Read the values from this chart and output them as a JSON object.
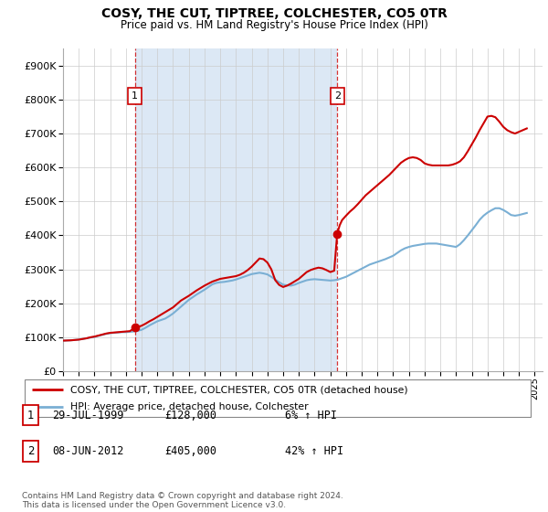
{
  "title": "COSY, THE CUT, TIPTREE, COLCHESTER, CO5 0TR",
  "subtitle": "Price paid vs. HM Land Registry's House Price Index (HPI)",
  "ytick_values": [
    0,
    100000,
    200000,
    300000,
    400000,
    500000,
    600000,
    700000,
    800000,
    900000
  ],
  "ylim": [
    0,
    950000
  ],
  "xlim_start": 1995.0,
  "xlim_end": 2025.5,
  "property_color": "#cc0000",
  "hpi_color": "#7aafd4",
  "shade_color": "#dce8f5",
  "dashed_color": "#cc0000",
  "marker1_date": 1999.57,
  "marker1_value": 128000,
  "marker1_label": "1",
  "marker2_date": 2012.44,
  "marker2_value": 405000,
  "marker2_label": "2",
  "legend_property": "COSY, THE CUT, TIPTREE, COLCHESTER, CO5 0TR (detached house)",
  "legend_hpi": "HPI: Average price, detached house, Colchester",
  "table_rows": [
    {
      "num": "1",
      "date": "29-JUL-1999",
      "price": "£128,000",
      "change": "6% ↑ HPI"
    },
    {
      "num": "2",
      "date": "08-JUN-2012",
      "price": "£405,000",
      "change": "42% ↑ HPI"
    }
  ],
  "footnote": "Contains HM Land Registry data © Crown copyright and database right 2024.\nThis data is licensed under the Open Government Licence v3.0.",
  "hpi_data_years": [
    1995.0,
    1995.25,
    1995.5,
    1995.75,
    1996.0,
    1996.25,
    1996.5,
    1996.75,
    1997.0,
    1997.25,
    1997.5,
    1997.75,
    1998.0,
    1998.25,
    1998.5,
    1998.75,
    1999.0,
    1999.25,
    1999.5,
    1999.75,
    2000.0,
    2000.25,
    2000.5,
    2000.75,
    2001.0,
    2001.25,
    2001.5,
    2001.75,
    2002.0,
    2002.25,
    2002.5,
    2002.75,
    2003.0,
    2003.25,
    2003.5,
    2003.75,
    2004.0,
    2004.25,
    2004.5,
    2004.75,
    2005.0,
    2005.25,
    2005.5,
    2005.75,
    2006.0,
    2006.25,
    2006.5,
    2006.75,
    2007.0,
    2007.25,
    2007.5,
    2007.75,
    2008.0,
    2008.25,
    2008.5,
    2008.75,
    2009.0,
    2009.25,
    2009.5,
    2009.75,
    2010.0,
    2010.25,
    2010.5,
    2010.75,
    2011.0,
    2011.25,
    2011.5,
    2011.75,
    2012.0,
    2012.25,
    2012.5,
    2012.75,
    2013.0,
    2013.25,
    2013.5,
    2013.75,
    2014.0,
    2014.25,
    2014.5,
    2014.75,
    2015.0,
    2015.25,
    2015.5,
    2015.75,
    2016.0,
    2016.25,
    2016.5,
    2016.75,
    2017.0,
    2017.25,
    2017.5,
    2017.75,
    2018.0,
    2018.25,
    2018.5,
    2018.75,
    2019.0,
    2019.25,
    2019.5,
    2019.75,
    2020.0,
    2020.25,
    2020.5,
    2020.75,
    2021.0,
    2021.25,
    2021.5,
    2021.75,
    2022.0,
    2022.25,
    2022.5,
    2022.75,
    2023.0,
    2023.25,
    2023.5,
    2023.75,
    2024.0,
    2024.25,
    2024.5
  ],
  "hpi_data_values": [
    90000,
    90500,
    91000,
    92000,
    93000,
    95000,
    97000,
    99000,
    101000,
    104000,
    107000,
    110000,
    112000,
    113000,
    114000,
    115000,
    115000,
    116000,
    117000,
    119000,
    122000,
    128000,
    135000,
    141000,
    147000,
    151000,
    155000,
    162000,
    170000,
    180000,
    190000,
    200000,
    210000,
    218000,
    226000,
    233000,
    240000,
    248000,
    256000,
    260000,
    262000,
    263000,
    265000,
    267000,
    270000,
    274000,
    278000,
    282000,
    286000,
    288000,
    290000,
    288000,
    285000,
    278000,
    270000,
    262000,
    255000,
    253000,
    252000,
    255000,
    260000,
    264000,
    268000,
    270000,
    271000,
    270000,
    269000,
    268000,
    267000,
    268000,
    270000,
    274000,
    278000,
    284000,
    290000,
    296000,
    302000,
    308000,
    314000,
    318000,
    322000,
    326000,
    330000,
    335000,
    340000,
    348000,
    356000,
    362000,
    366000,
    369000,
    371000,
    373000,
    375000,
    376000,
    376000,
    376000,
    374000,
    372000,
    370000,
    368000,
    366000,
    374000,
    386000,
    400000,
    415000,
    430000,
    446000,
    458000,
    467000,
    474000,
    480000,
    480000,
    475000,
    468000,
    460000,
    458000,
    460000,
    463000,
    466000
  ],
  "prop_data_years": [
    1995.0,
    1995.25,
    1995.5,
    1995.75,
    1996.0,
    1996.25,
    1996.5,
    1996.75,
    1997.0,
    1997.25,
    1997.5,
    1997.75,
    1998.0,
    1998.25,
    1998.5,
    1998.75,
    1999.0,
    1999.25,
    1999.57,
    1999.75,
    2000.0,
    2000.25,
    2000.5,
    2000.75,
    2001.0,
    2001.25,
    2001.5,
    2001.75,
    2002.0,
    2002.25,
    2002.5,
    2002.75,
    2003.0,
    2003.25,
    2003.5,
    2003.75,
    2004.0,
    2004.25,
    2004.5,
    2004.75,
    2005.0,
    2005.25,
    2005.5,
    2005.75,
    2006.0,
    2006.25,
    2006.5,
    2006.75,
    2007.0,
    2007.25,
    2007.5,
    2007.75,
    2008.0,
    2008.25,
    2008.5,
    2008.75,
    2009.0,
    2009.25,
    2009.5,
    2009.75,
    2010.0,
    2010.25,
    2010.5,
    2010.75,
    2011.0,
    2011.25,
    2011.5,
    2011.75,
    2012.0,
    2012.25,
    2012.44,
    2012.6,
    2012.75,
    2013.0,
    2013.25,
    2013.5,
    2013.75,
    2014.0,
    2014.25,
    2014.5,
    2014.75,
    2015.0,
    2015.25,
    2015.5,
    2015.75,
    2016.0,
    2016.25,
    2016.5,
    2016.75,
    2017.0,
    2017.25,
    2017.5,
    2017.75,
    2018.0,
    2018.25,
    2018.5,
    2018.75,
    2019.0,
    2019.25,
    2019.5,
    2019.75,
    2020.0,
    2020.25,
    2020.5,
    2020.75,
    2021.0,
    2021.25,
    2021.5,
    2021.75,
    2022.0,
    2022.25,
    2022.5,
    2022.75,
    2023.0,
    2023.25,
    2023.5,
    2023.75,
    2024.0,
    2024.25,
    2024.5
  ],
  "prop_data_values": [
    90000,
    90500,
    91000,
    92000,
    93000,
    95000,
    97000,
    100000,
    102000,
    105000,
    108000,
    111000,
    113000,
    114000,
    115000,
    116000,
    117000,
    118000,
    128000,
    130000,
    134000,
    140000,
    147000,
    153000,
    160000,
    167000,
    174000,
    181000,
    188000,
    198000,
    208000,
    215000,
    222000,
    230000,
    238000,
    245000,
    252000,
    258000,
    264000,
    268000,
    272000,
    274000,
    276000,
    278000,
    280000,
    284000,
    290000,
    298000,
    308000,
    320000,
    332000,
    330000,
    320000,
    300000,
    268000,
    254000,
    248000,
    252000,
    258000,
    265000,
    272000,
    282000,
    292000,
    298000,
    302000,
    305000,
    303000,
    298000,
    292000,
    296000,
    405000,
    430000,
    445000,
    458000,
    470000,
    480000,
    492000,
    505000,
    518000,
    528000,
    538000,
    548000,
    558000,
    568000,
    578000,
    590000,
    602000,
    614000,
    622000,
    628000,
    630000,
    628000,
    622000,
    612000,
    608000,
    606000,
    606000,
    606000,
    606000,
    606000,
    608000,
    612000,
    618000,
    630000,
    648000,
    668000,
    688000,
    710000,
    730000,
    750000,
    752000,
    748000,
    735000,
    720000,
    710000,
    704000,
    700000,
    705000,
    710000,
    715000
  ],
  "xtick_years": [
    1995,
    1996,
    1997,
    1998,
    1999,
    2000,
    2001,
    2002,
    2003,
    2004,
    2005,
    2006,
    2007,
    2008,
    2009,
    2010,
    2011,
    2012,
    2013,
    2014,
    2015,
    2016,
    2017,
    2018,
    2019,
    2020,
    2021,
    2022,
    2023,
    2024,
    2025
  ]
}
